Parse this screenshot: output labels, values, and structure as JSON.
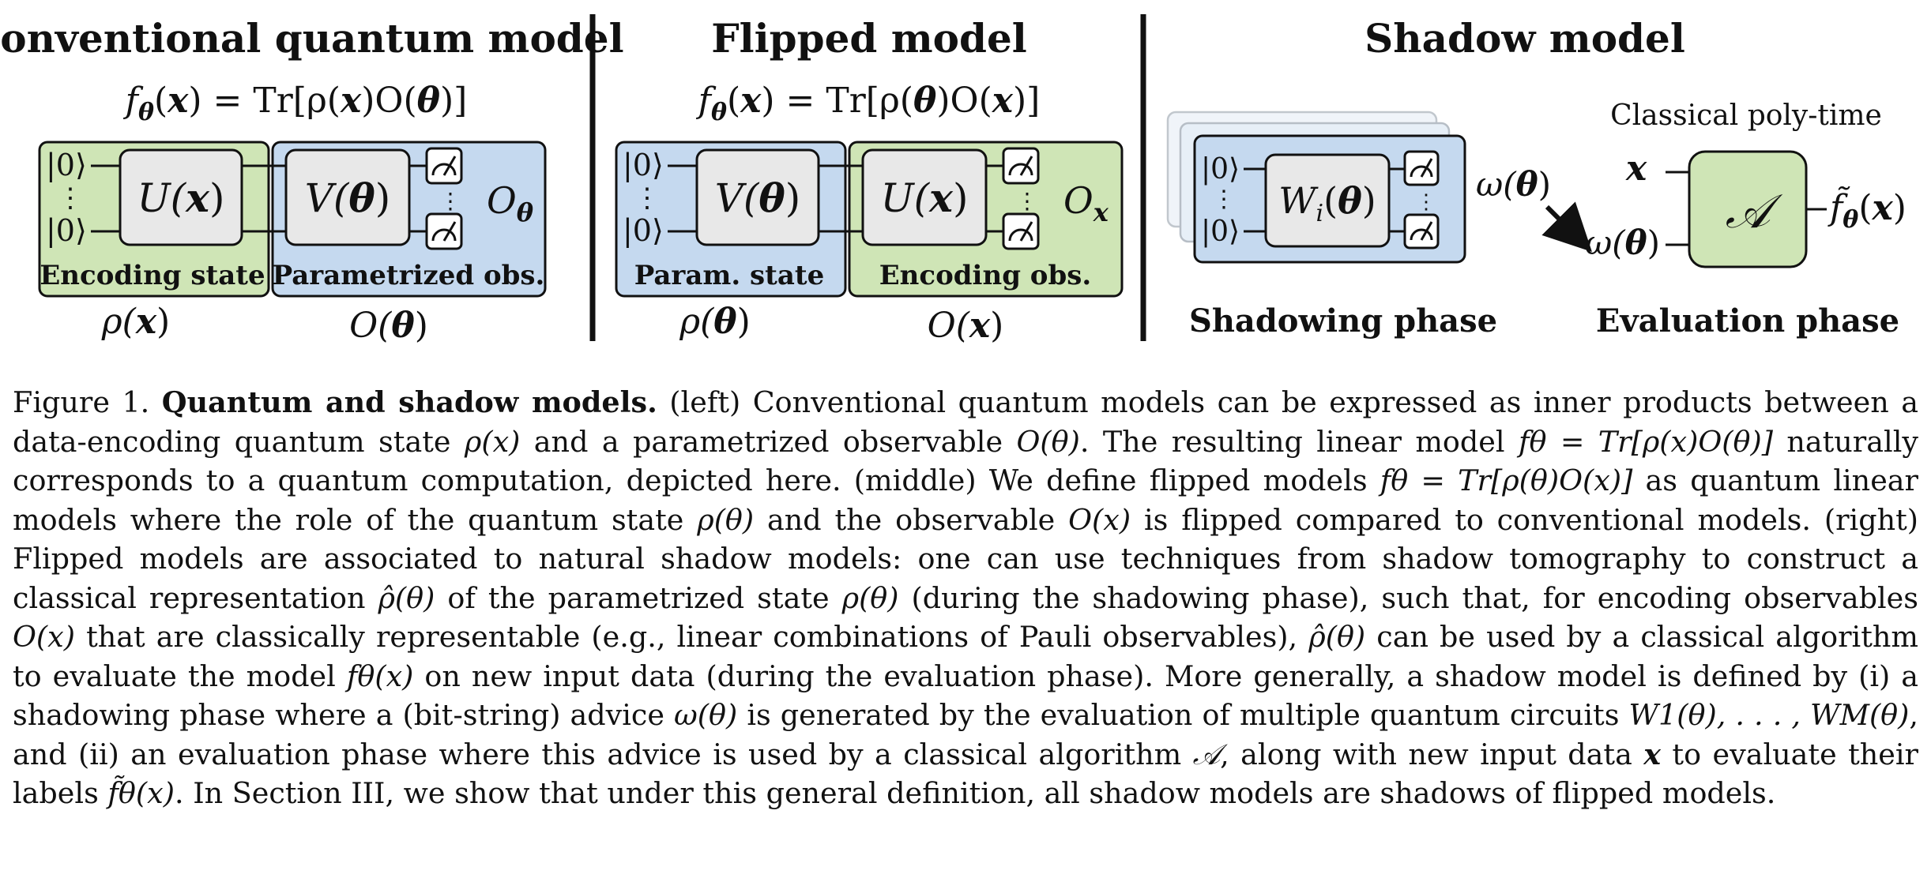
{
  "panels": {
    "conventional": {
      "title": "Conventional quantum model",
      "formula": [
        "f",
        "θ",
        "(",
        "x",
        ") = Tr[ρ(",
        "x",
        ")O(",
        "θ",
        ")]"
      ],
      "state_label": "Encoding state",
      "obs_label": "Parametrized obs.",
      "gate_left": [
        "U(",
        "x",
        ")"
      ],
      "gate_right": [
        "V(",
        "θ",
        ")"
      ],
      "obs_symbol": [
        "O",
        "θ"
      ],
      "below_left": [
        "ρ(",
        "x",
        ")"
      ],
      "below_right": [
        "O(",
        "θ",
        ")"
      ],
      "ket_top": "|0⟩",
      "ket_bottom": "|0⟩",
      "colors": {
        "green": "#cfe5b6",
        "blue": "#c5d9ef",
        "gate": "#e8e8e8"
      }
    },
    "flipped": {
      "title": "Flipped model",
      "formula": [
        "f",
        "θ",
        "(",
        "x",
        ") = Tr[ρ(",
        "θ",
        ")O(",
        "x",
        ")]"
      ],
      "state_label": "Param. state",
      "obs_label": "Encoding obs.",
      "gate_left": [
        "V(",
        "θ",
        ")"
      ],
      "gate_right": [
        "U(",
        "x",
        ")"
      ],
      "obs_symbol": [
        "O",
        "x"
      ],
      "below_left": [
        "ρ(",
        "θ",
        ")"
      ],
      "below_right": [
        "O(",
        "x",
        ")"
      ],
      "ket_top": "|0⟩",
      "ket_bottom": "|0⟩"
    },
    "shadow": {
      "title": "Shadow model",
      "gate": [
        "W",
        "i",
        "(",
        "θ",
        ")"
      ],
      "advice_out": [
        "ω(",
        "θ",
        ")"
      ],
      "advice_in": [
        "ω(",
        "θ",
        ")"
      ],
      "classical_note": "Classical poly-time",
      "input_symbol": "x",
      "algorithm": "𝒜",
      "output": [
        "f̃",
        "θ",
        "(",
        "x",
        ")"
      ],
      "phase_left": "Shadowing phase",
      "phase_right": "Evaluation phase",
      "ket_top": "|0⟩",
      "ket_bottom": "|0⟩"
    }
  },
  "caption": {
    "figure_label": "Figure 1.",
    "title": "Quantum and shadow models.",
    "s1": " (left) Conventional quantum models can be expressed as inner products between a data-encoding quantum state ",
    "m1": "ρ(x)",
    "s2": " and a parametrized observable ",
    "m2": "O(θ)",
    "s3": ". The resulting linear model ",
    "m3": "fθ = Tr[ρ(x)O(θ)]",
    "s4": " naturally corresponds to a quantum computation, depicted here. (middle) We define flipped models ",
    "m4": "fθ = Tr[ρ(θ)O(x)]",
    "s5": " as quantum linear models where the role of the quantum state ",
    "m5": "ρ(θ)",
    "s6": " and the observable ",
    "m6": "O(x)",
    "s7": " is flipped compared to conventional models. (right) Flipped models are associated to natural shadow models: one can use techniques from shadow tomography to construct a classical representation ",
    "m7": "ρ̂(θ)",
    "s8": " of the parametrized state ",
    "m8": "ρ(θ)",
    "s9": " (during the shadowing phase), such that, for encoding observables ",
    "m9": "O(x)",
    "s10": " that are classically representable (e.g., linear combinations of Pauli observables), ",
    "m10": "ρ̂(θ)",
    "s11": " can be used by a classical algorithm to evaluate the model ",
    "m11": "fθ(x)",
    "s12": " on new input data (during the evaluation phase). More generally, a shadow model is defined by (i) a shadowing phase where a (bit-string) advice ",
    "m12": "ω(θ)",
    "s13": " is generated by the evaluation of multiple quantum circuits ",
    "m13": "W1(θ), . . . , WM(θ)",
    "s14": ", and (ii) an evaluation phase where this advice is used by a classical algorithm ",
    "m14": "𝒜",
    "s15": ", along with new input data ",
    "m15": "x",
    "s16": " to evaluate their labels ",
    "m16": "f̃θ(x)",
    "s17": ". In Section III, we show that under this general definition, all shadow models are shadows of flipped models."
  }
}
